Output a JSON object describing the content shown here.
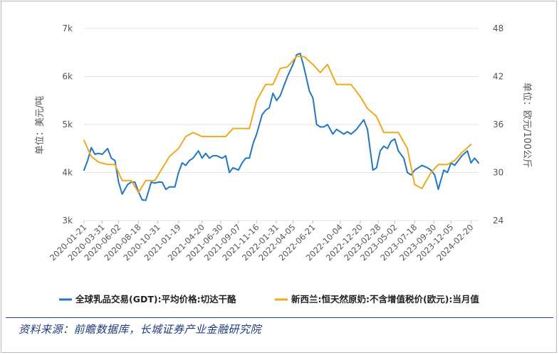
{
  "chart_data": {
    "type": "line",
    "title": "",
    "ylabel_left": "单位：美元/吨",
    "ylabel_right": "单位：欧元/100公斤",
    "ylim_left": [
      3000,
      7000
    ],
    "ylim_right": [
      24,
      48
    ],
    "yticks_left": [
      3000,
      4000,
      5000,
      6000,
      7000
    ],
    "yticks_left_labels": [
      "3k",
      "4k",
      "5k",
      "6k",
      "7k"
    ],
    "yticks_right": [
      24,
      30,
      36,
      42,
      48
    ],
    "yticks_right_labels": [
      "24",
      "30",
      "36",
      "42",
      "48"
    ],
    "x_start": "2020-01-21",
    "x_end": "2024-03-20",
    "xtick_labels": [
      "2020-01-21",
      "2020-03-31",
      "2020-06-02",
      "2020-08-18",
      "2020-10-31",
      "2021-01-19",
      "2021-04-20",
      "2021-06-30",
      "2021-09-07",
      "2021-11-16",
      "2022-01-31",
      "2022-04-05",
      "2022-06-21",
      "2022-10-04",
      "2022-12-20",
      "2023-02-28",
      "2023-05-02",
      "2023-07-18",
      "2023-09-30",
      "2023-12-05",
      "2024-02-20"
    ],
    "legend_position": "bottom",
    "grid": "horizontal",
    "series": [
      {
        "name": "全球乳品交易(GDT):平均价格:切达干酪",
        "axis": "left",
        "color": "#1f78c1",
        "x": [
          "2020-01-21",
          "2020-02-04",
          "2020-02-18",
          "2020-03-03",
          "2020-03-17",
          "2020-03-31",
          "2020-04-21",
          "2020-05-05",
          "2020-05-19",
          "2020-06-02",
          "2020-06-16",
          "2020-07-07",
          "2020-07-21",
          "2020-08-04",
          "2020-08-18",
          "2020-09-01",
          "2020-09-15",
          "2020-10-06",
          "2020-10-20",
          "2020-11-03",
          "2020-11-17",
          "2020-12-01",
          "2020-12-15",
          "2021-01-05",
          "2021-01-19",
          "2021-02-02",
          "2021-02-16",
          "2021-03-02",
          "2021-03-16",
          "2021-04-06",
          "2021-04-20",
          "2021-05-04",
          "2021-05-18",
          "2021-06-01",
          "2021-06-15",
          "2021-07-06",
          "2021-07-20",
          "2021-08-03",
          "2021-08-17",
          "2021-09-07",
          "2021-09-21",
          "2021-10-05",
          "2021-10-19",
          "2021-11-02",
          "2021-11-16",
          "2021-12-07",
          "2021-12-21",
          "2022-01-04",
          "2022-01-18",
          "2022-02-01",
          "2022-02-15",
          "2022-03-01",
          "2022-03-15",
          "2022-04-05",
          "2022-04-19",
          "2022-05-03",
          "2022-05-17",
          "2022-06-07",
          "2022-06-21",
          "2022-07-05",
          "2022-07-19",
          "2022-08-02",
          "2022-08-16",
          "2022-09-06",
          "2022-09-20",
          "2022-10-04",
          "2022-10-18",
          "2022-11-01",
          "2022-11-15",
          "2022-12-06",
          "2022-12-20",
          "2023-01-03",
          "2023-01-17",
          "2023-02-07",
          "2023-02-21",
          "2023-03-07",
          "2023-03-21",
          "2023-04-04",
          "2023-04-18",
          "2023-05-02",
          "2023-05-16",
          "2023-06-06",
          "2023-06-20",
          "2023-07-04",
          "2023-07-18",
          "2023-08-01",
          "2023-08-15",
          "2023-09-05",
          "2023-09-19",
          "2023-10-03",
          "2023-10-17",
          "2023-11-07",
          "2023-11-21",
          "2023-12-05",
          "2023-12-19",
          "2024-01-02",
          "2024-01-16",
          "2024-02-06",
          "2024-02-20",
          "2024-03-05",
          "2024-03-20"
        ],
        "values": [
          4050,
          4250,
          4520,
          4380,
          4400,
          4380,
          4500,
          4300,
          4250,
          3800,
          3550,
          3750,
          3800,
          3800,
          3600,
          3430,
          3420,
          3800,
          3780,
          3800,
          3800,
          3650,
          3700,
          3700,
          4000,
          4200,
          4150,
          4250,
          4300,
          4450,
          4300,
          4400,
          4300,
          4350,
          4350,
          4300,
          4350,
          4000,
          4100,
          4050,
          4200,
          4300,
          4300,
          4600,
          4800,
          5200,
          5300,
          5350,
          5650,
          5500,
          5600,
          5800,
          6000,
          6250,
          6450,
          6480,
          6200,
          5700,
          5550,
          5000,
          4950,
          4950,
          5000,
          4800,
          4900,
          4850,
          4800,
          4850,
          4800,
          4900,
          5000,
          5100,
          4900,
          4050,
          4100,
          4450,
          4550,
          4500,
          4650,
          4700,
          4450,
          4300,
          4000,
          3950,
          4050,
          4100,
          4150,
          4100,
          4050,
          3950,
          3650,
          4050,
          4000,
          4200,
          4150,
          4250,
          4350,
          4450,
          4200,
          4300,
          4200
        ]
      },
      {
        "name": "新西兰:恒天然原奶:不含增值税价(欧元):当月值",
        "axis": "right",
        "color": "#f0a81e",
        "x": [
          "2020-01-21",
          "2020-02-18",
          "2020-03-17",
          "2020-04-21",
          "2020-05-19",
          "2020-06-16",
          "2020-07-21",
          "2020-08-18",
          "2020-09-15",
          "2020-10-20",
          "2020-11-17",
          "2020-12-15",
          "2021-01-19",
          "2021-02-16",
          "2021-03-16",
          "2021-04-20",
          "2021-05-18",
          "2021-06-15",
          "2021-07-20",
          "2021-08-17",
          "2021-09-21",
          "2021-10-19",
          "2021-11-16",
          "2021-12-21",
          "2022-01-18",
          "2022-02-15",
          "2022-03-15",
          "2022-04-19",
          "2022-05-17",
          "2022-06-21",
          "2022-07-19",
          "2022-08-16",
          "2022-09-20",
          "2022-10-18",
          "2022-11-15",
          "2022-12-20",
          "2023-01-17",
          "2023-02-21",
          "2023-03-21",
          "2023-04-18",
          "2023-05-16",
          "2023-06-20",
          "2023-07-18",
          "2023-08-15",
          "2023-09-19",
          "2023-10-17",
          "2023-11-21",
          "2023-12-19",
          "2024-01-16",
          "2024-02-20"
        ],
        "values": [
          34,
          32,
          31.3,
          31,
          31,
          29,
          29,
          27.5,
          29,
          29,
          30.5,
          32,
          33,
          34.5,
          35,
          34.5,
          34.5,
          34.5,
          34.5,
          35.5,
          35.5,
          35.5,
          39,
          41,
          41,
          43,
          43.2,
          44.5,
          44.5,
          43.5,
          42.5,
          43.5,
          41,
          41,
          41,
          39.5,
          38,
          37,
          35,
          35,
          35,
          33,
          28.5,
          28,
          30,
          31,
          31,
          31.5,
          32.5,
          33.5
        ]
      }
    ]
  },
  "source_text": "资料来源：前瞻数据库，长城证券产业金融研究院"
}
